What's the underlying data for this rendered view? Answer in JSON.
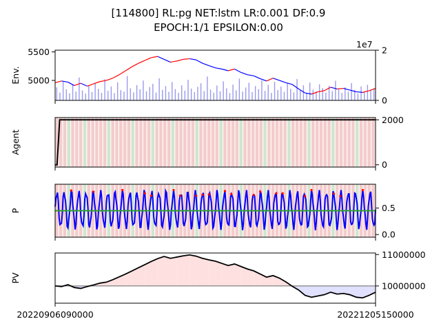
{
  "title": {
    "line1": "[114800] RL:pg NET:lstm LR:0.001 DF:0.9",
    "line2": "EPOCH:1/1 EPSILON:0.00"
  },
  "x_tick_labels": [
    "20220906090000",
    "20221205150000"
  ],
  "colors": {
    "price_up": "#ff0000",
    "price_down": "#0000ff",
    "volume": "#9999ee",
    "buy_bg": "#f4cccc",
    "hold_bg": "#cfe6cf",
    "agent_line": "#000000",
    "policy_line": "#0000ff",
    "policy_mark": "#ff0000",
    "policy_mean": "#2ca02c",
    "pv_profit_fill": "#ffe0e0",
    "pv_loss_fill": "#e0e0ff",
    "baseline": "#808080"
  },
  "chart_data": [
    {
      "id": "env",
      "type": "line",
      "ylabel": "Env.",
      "ylim": [
        4650,
        5530
      ],
      "yticks": [
        {
          "value": 5000,
          "label": "5000"
        },
        {
          "value": 5500,
          "label": "5500"
        }
      ],
      "y2_offset_label": "1e7",
      "y2lim": [
        0,
        2
      ],
      "y2ticks": [
        {
          "value": 0,
          "label": "0"
        },
        {
          "value": 2,
          "label": "2"
        }
      ],
      "x_range": [
        0,
        100
      ],
      "price": {
        "x": [
          0,
          2,
          4,
          6,
          8,
          10,
          12,
          14,
          16,
          18,
          20,
          22,
          24,
          26,
          28,
          30,
          32,
          34,
          36,
          38,
          40,
          42,
          44,
          46,
          48,
          50,
          52,
          54,
          56,
          58,
          60,
          62,
          64,
          66,
          68,
          70,
          72,
          74,
          76,
          78,
          80,
          82,
          84,
          86,
          88,
          90,
          92,
          94,
          96,
          98,
          100
        ],
        "y": [
          4960,
          4990,
          4970,
          4910,
          4950,
          4900,
          4940,
          4980,
          5000,
          5040,
          5100,
          5170,
          5240,
          5300,
          5350,
          5400,
          5420,
          5370,
          5320,
          5340,
          5370,
          5380,
          5360,
          5300,
          5260,
          5220,
          5200,
          5170,
          5200,
          5140,
          5100,
          5080,
          5030,
          4990,
          5040,
          5000,
          4960,
          4930,
          4850,
          4780,
          4760,
          4800,
          4820,
          4880,
          4850,
          4860,
          4830,
          4800,
          4790,
          4820,
          4860
        ]
      },
      "volume": {
        "x_start": 0,
        "x_end": 100,
        "count": 100,
        "values": [
          0.52,
          0.31,
          0.77,
          0.44,
          0.28,
          0.63,
          0.35,
          0.91,
          0.4,
          0.27,
          0.58,
          0.33,
          0.69,
          0.46,
          0.3,
          0.84,
          0.38,
          0.55,
          0.29,
          0.72,
          0.41,
          0.35,
          0.97,
          0.48,
          0.32,
          0.61,
          0.44,
          0.79,
          0.36,
          0.53,
          0.66,
          0.31,
          0.88,
          0.42,
          0.57,
          0.34,
          0.73,
          0.45,
          0.3,
          0.6,
          0.39,
          0.82,
          0.47,
          0.33,
          0.54,
          0.68,
          0.37,
          0.95,
          0.43,
          0.31,
          0.59,
          0.36,
          0.76,
          0.48,
          0.29,
          0.63,
          0.4,
          0.87,
          0.35,
          0.51,
          0.7,
          0.33,
          0.57,
          0.45,
          0.8,
          0.38,
          0.62,
          0.3,
          0.74,
          0.41,
          0.55,
          0.34,
          0.67,
          0.46,
          0.32,
          0.85,
          0.39,
          0.6,
          0.28,
          0.71,
          0.43,
          0.36,
          0.64,
          0.49,
          0.31,
          0.58,
          0.37,
          0.78,
          0.44,
          0.3,
          0.52,
          0.35,
          0.69,
          0.42,
          0.27,
          0.56,
          0.33,
          0.62,
          0.4,
          0.48
        ]
      }
    },
    {
      "id": "agent",
      "type": "line",
      "ylabel": "Agent",
      "ylim": [
        -100,
        2100
      ],
      "y2ticks": [
        {
          "value": 0,
          "label": "0"
        },
        {
          "value": 2000,
          "label": "2000"
        }
      ],
      "x_range": [
        0,
        100
      ],
      "x": [
        0,
        0.6,
        1.1,
        1.4,
        100
      ],
      "y": [
        0,
        0,
        1200,
        2000,
        2000
      ],
      "action_bands": {
        "count": 80,
        "hold_indices": [
          3,
          7,
          13,
          19,
          24,
          29,
          35,
          41,
          46,
          52,
          58,
          63,
          69,
          75
        ]
      }
    },
    {
      "id": "policy",
      "type": "line",
      "ylabel": "P",
      "ylim": [
        -0.05,
        0.95
      ],
      "y2ticks": [
        {
          "value": 0.0,
          "label": "0.0"
        },
        {
          "value": 0.5,
          "label": "0.5"
        }
      ],
      "x_range": [
        0,
        100
      ],
      "mean": 0.45,
      "oscillation": {
        "center": 0.47,
        "amplitude": 0.33,
        "cycles": 44,
        "points": 401
      },
      "action_bands": {
        "count": 80,
        "hold_indices": [
          3,
          7,
          13,
          19,
          24,
          29,
          35,
          41,
          46,
          52,
          58,
          63,
          69,
          75
        ]
      }
    },
    {
      "id": "pv",
      "type": "area",
      "ylabel": "PV",
      "ylim": [
        9450000,
        11050000
      ],
      "y2ticks": [
        {
          "value": 10000000,
          "label": "10000000"
        },
        {
          "value": 11000000,
          "label": "11000000"
        }
      ],
      "x_range": [
        0,
        100
      ],
      "baseline": 10000000,
      "x": [
        0,
        2,
        4,
        6,
        8,
        10,
        12,
        14,
        16,
        18,
        20,
        22,
        24,
        26,
        28,
        30,
        32,
        34,
        36,
        38,
        40,
        42,
        44,
        46,
        48,
        50,
        52,
        54,
        56,
        58,
        60,
        62,
        64,
        66,
        68,
        70,
        72,
        74,
        76,
        78,
        80,
        82,
        84,
        86,
        88,
        90,
        92,
        94,
        96,
        98,
        100
      ],
      "y": [
        10000000,
        9980000,
        10040000,
        9950000,
        9920000,
        9980000,
        10030000,
        10090000,
        10120000,
        10200000,
        10290000,
        10380000,
        10480000,
        10580000,
        10680000,
        10780000,
        10870000,
        10940000,
        10880000,
        10920000,
        10960000,
        10990000,
        10950000,
        10880000,
        10830000,
        10790000,
        10720000,
        10650000,
        10700000,
        10620000,
        10540000,
        10480000,
        10380000,
        10280000,
        10330000,
        10250000,
        10130000,
        9990000,
        9870000,
        9700000,
        9640000,
        9680000,
        9720000,
        9800000,
        9740000,
        9760000,
        9720000,
        9640000,
        9620000,
        9700000,
        9800000
      ]
    }
  ]
}
